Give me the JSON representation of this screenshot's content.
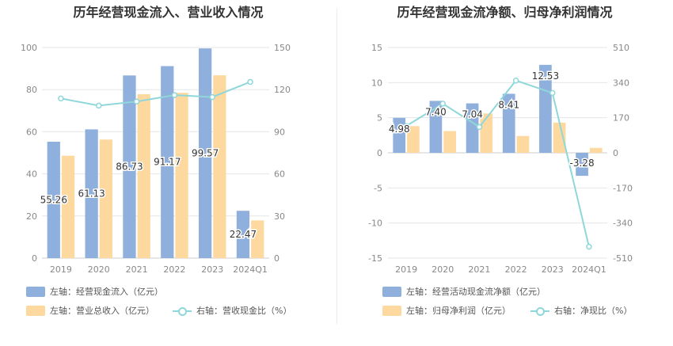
{
  "colors": {
    "bar_primary": "#8fafdd",
    "bar_secondary": "#fdd9a0",
    "line": "#8fd7d9",
    "grid": "#e6e6e6",
    "axis_text": "#888888"
  },
  "chart_data": [
    {
      "type": "bar",
      "title": "历年经营现金流入、营业收入情况",
      "categories": [
        "2019",
        "2020",
        "2021",
        "2022",
        "2023",
        "2024Q1"
      ],
      "left_axis": {
        "ylim": [
          0,
          100
        ],
        "ticks": [
          "0",
          "20",
          "40",
          "60",
          "80",
          "100"
        ]
      },
      "right_axis": {
        "ylim": [
          0,
          150
        ],
        "ticks": [
          "0",
          "30",
          "60",
          "90",
          "120",
          "150"
        ]
      },
      "series": [
        {
          "name": "左轴：经营现金流入（亿元）",
          "kind": "bar",
          "axis": "left",
          "values": [
            55.26,
            61.13,
            86.73,
            91.17,
            99.57,
            22.47
          ],
          "labels": [
            "55.26",
            "61.13",
            "86.73",
            "91.17",
            "99.57",
            "22.47"
          ]
        },
        {
          "name": "左轴：营业总收入（亿元）",
          "kind": "bar",
          "axis": "left",
          "values": [
            48.6,
            56.3,
            77.8,
            78.5,
            86.8,
            17.9
          ]
        },
        {
          "name": "右轴：营收现金比（%）",
          "kind": "line",
          "axis": "right",
          "values": [
            113.7,
            108.6,
            111.5,
            116.1,
            114.7,
            125.5
          ]
        }
      ]
    },
    {
      "type": "bar",
      "title": "历年经营现金流净额、归母净利润情况",
      "categories": [
        "2019",
        "2020",
        "2021",
        "2022",
        "2023",
        "2024Q1"
      ],
      "left_axis": {
        "ylim": [
          -15,
          15
        ],
        "ticks": [
          "-15",
          "-10",
          "-5",
          "0",
          "5",
          "10",
          "15"
        ]
      },
      "right_axis": {
        "ylim": [
          -510,
          510
        ],
        "ticks": [
          "-510",
          "-340",
          "-170",
          "0",
          "170",
          "340",
          "510"
        ]
      },
      "series": [
        {
          "name": "左轴：经营活动现金流净额（亿元）",
          "kind": "bar",
          "axis": "left",
          "values": [
            4.98,
            7.4,
            7.04,
            8.41,
            12.53,
            -3.28
          ],
          "labels": [
            "4.98",
            "7.40",
            "7.04",
            "8.41",
            "12.53",
            "-3.28"
          ]
        },
        {
          "name": "左轴：归母净利润（亿元）",
          "kind": "bar",
          "axis": "left",
          "values": [
            3.8,
            3.1,
            5.6,
            2.4,
            4.3,
            0.7
          ]
        },
        {
          "name": "右轴：净现比（%）",
          "kind": "line",
          "axis": "right",
          "values": [
            130,
            238,
            125,
            350,
            290,
            -455
          ]
        }
      ]
    }
  ]
}
